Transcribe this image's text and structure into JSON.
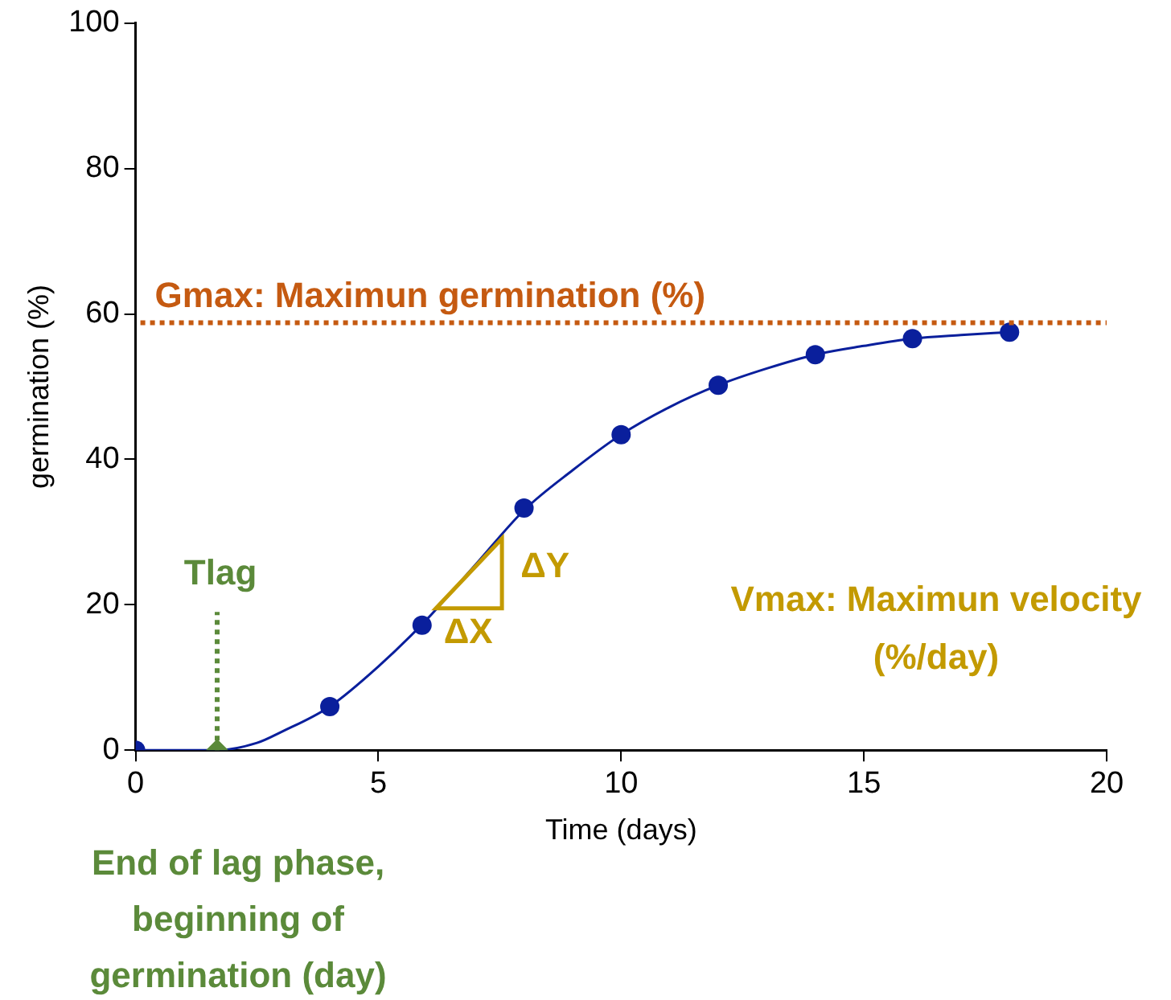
{
  "chart_data": {
    "type": "scatter",
    "xlabel": "Time (days)",
    "ylabel": "germination (%)",
    "xlim": [
      0,
      20
    ],
    "xticks": [
      0,
      5,
      10,
      15,
      20
    ],
    "ylim": [
      0,
      100
    ],
    "yticks": [
      0,
      20,
      40,
      60,
      80,
      100
    ],
    "grid": false,
    "legend": false,
    "series": [
      {
        "type": "line",
        "color": "#0a1f9c",
        "marker": "none",
        "x": [
          0,
          1,
          1.68,
          2.5,
          3,
          4,
          5,
          6,
          7,
          8,
          9,
          10,
          11,
          12,
          13,
          14,
          15,
          16,
          17,
          18
        ],
        "values": [
          0,
          0,
          0,
          1,
          2.5,
          6,
          11.5,
          18,
          25.5,
          33,
          38.5,
          43.4,
          47.2,
          50.2,
          52.5,
          54.4,
          55.6,
          56.6,
          57.1,
          57.5
        ]
      },
      {
        "type": "scatter",
        "color": "#0a1f9c",
        "marker": "circle",
        "x": [
          0,
          4,
          5.9,
          8,
          10,
          12,
          14,
          16,
          18
        ],
        "values": [
          0,
          6,
          17.2,
          33.3,
          43.4,
          50.2,
          54.4,
          56.6,
          57.5
        ]
      },
      {
        "type": "scatter",
        "color": "#5b8a3a",
        "marker": "diamond",
        "x": [
          1.68
        ],
        "values": [
          0
        ]
      }
    ],
    "ref_lines": [
      {
        "axis": "y",
        "value": 58.8,
        "label": "Gmax: Maximun germination (%)",
        "color": "#c55a11",
        "line_style": "dotted"
      },
      {
        "axis": "x",
        "value": 1.68,
        "label": "Tlag",
        "color": "#5b8a3a",
        "line_style": "dotted"
      }
    ],
    "annotations": [
      "ΔX",
      "ΔY",
      "Vmax: Maximun velocity (%/day)",
      "End of lag phase, beginning of germination (day)"
    ]
  }
}
